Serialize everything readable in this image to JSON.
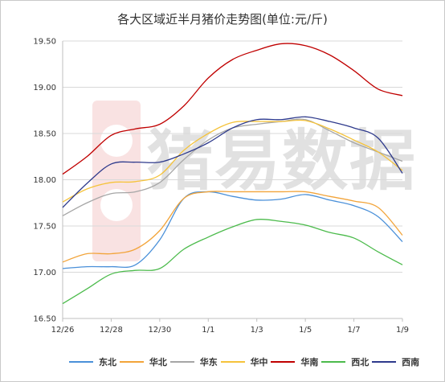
{
  "chart_data": {
    "type": "line",
    "title": "各大区域近半月猪价走势图(单位:元/斤)",
    "watermark_text": "猪易数据",
    "x": [
      "12/26",
      "12/27",
      "12/28",
      "12/29",
      "12/30",
      "12/31",
      "1/1",
      "1/2",
      "1/3",
      "1/4",
      "1/5",
      "1/6",
      "1/7",
      "1/8",
      "1/9"
    ],
    "xtick_labels": [
      "12/26",
      "12/28",
      "12/30",
      "1/1",
      "1/3",
      "1/5",
      "1/7",
      "1/9"
    ],
    "ylim": [
      16.5,
      19.5
    ],
    "yticks": [
      "16.50",
      "17.00",
      "17.50",
      "18.00",
      "18.50",
      "19.00",
      "19.50"
    ],
    "grid": "horizontal",
    "legend_position": "bottom",
    "series": [
      {
        "name": "东北",
        "color": "#4a90d9",
        "values": [
          17.04,
          17.06,
          17.06,
          17.08,
          17.35,
          17.8,
          17.87,
          17.82,
          17.78,
          17.79,
          17.84,
          17.78,
          17.72,
          17.6,
          17.33
        ]
      },
      {
        "name": "华北",
        "color": "#f2a43a",
        "values": [
          17.11,
          17.2,
          17.2,
          17.25,
          17.45,
          17.8,
          17.87,
          17.87,
          17.87,
          17.87,
          17.87,
          17.82,
          17.77,
          17.7,
          17.4
        ]
      },
      {
        "name": "华东",
        "color": "#a6a6a6",
        "values": [
          17.61,
          17.75,
          17.85,
          17.87,
          17.97,
          18.22,
          18.43,
          18.56,
          18.6,
          18.63,
          18.65,
          18.53,
          18.4,
          18.3,
          18.2
        ]
      },
      {
        "name": "华中",
        "color": "#f5c33b",
        "values": [
          17.76,
          17.9,
          17.97,
          17.98,
          18.05,
          18.32,
          18.5,
          18.62,
          18.63,
          18.63,
          18.64,
          18.55,
          18.43,
          18.3,
          18.1
        ]
      },
      {
        "name": "华南",
        "color": "#c00000",
        "values": [
          18.06,
          18.25,
          18.48,
          18.55,
          18.6,
          18.8,
          19.1,
          19.3,
          19.4,
          19.47,
          19.45,
          19.35,
          19.18,
          18.98,
          18.91
        ]
      },
      {
        "name": "西北",
        "color": "#4cbb4c",
        "values": [
          16.66,
          16.82,
          16.98,
          17.02,
          17.04,
          17.25,
          17.38,
          17.49,
          17.57,
          17.55,
          17.51,
          17.43,
          17.37,
          17.22,
          17.08
        ]
      },
      {
        "name": "西南",
        "color": "#2e3a8c",
        "values": [
          17.7,
          17.96,
          18.17,
          18.19,
          18.19,
          18.28,
          18.4,
          18.56,
          18.65,
          18.65,
          18.68,
          18.63,
          18.56,
          18.45,
          18.07
        ]
      }
    ]
  }
}
